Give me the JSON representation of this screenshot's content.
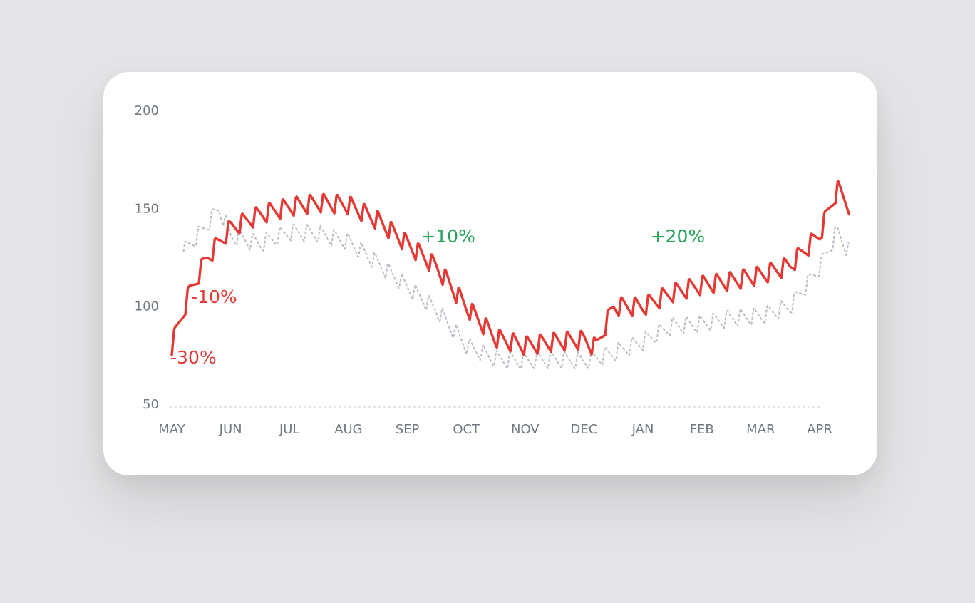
{
  "colors": {
    "primary": "#e53935",
    "secondary": "#b8bcc4",
    "positive": "#27a35a",
    "negative": "#e53935",
    "axis": "#707880"
  },
  "chart_data": {
    "type": "line",
    "title": "",
    "xlabel": "",
    "ylabel": "",
    "ylim": [
      50,
      200
    ],
    "yticks": [
      "200",
      "150",
      "100",
      "50"
    ],
    "xtick_labels": [
      "MAY",
      "JUN",
      "JUL",
      "AUG",
      "SEP",
      "OCT",
      "NOV",
      "DEC",
      "JAN",
      "FEB",
      "MAR",
      "APR"
    ],
    "grid": false,
    "baseline_dashed": true,
    "series": [
      {
        "style": "solid-red",
        "description_points": [
          [
            0.0,
            80
          ],
          [
            0.3,
            107
          ],
          [
            0.6,
            125
          ],
          [
            1.0,
            140
          ],
          [
            1.5,
            147
          ],
          [
            2.0,
            151
          ],
          [
            2.5,
            153
          ],
          [
            3.0,
            152
          ],
          [
            3.5,
            144
          ],
          [
            4.0,
            132
          ],
          [
            4.5,
            120
          ],
          [
            5.0,
            100
          ],
          [
            5.5,
            84
          ],
          [
            6.0,
            80
          ],
          [
            6.5,
            82
          ],
          [
            7.0,
            83
          ],
          [
            7.2,
            79
          ],
          [
            7.5,
            100
          ],
          [
            8.0,
            100
          ],
          [
            8.5,
            107
          ],
          [
            9.0,
            111
          ],
          [
            9.5,
            113
          ],
          [
            10.0,
            116
          ],
          [
            10.5,
            121
          ],
          [
            11.0,
            137
          ],
          [
            11.3,
            160
          ],
          [
            11.5,
            152
          ]
        ]
      },
      {
        "style": "dashed-gray",
        "description_points": [
          [
            0.2,
            128
          ],
          [
            0.5,
            138
          ],
          [
            0.8,
            150
          ],
          [
            1.0,
            136
          ],
          [
            1.5,
            132
          ],
          [
            2.0,
            138
          ],
          [
            2.5,
            137
          ],
          [
            3.0,
            133
          ],
          [
            3.5,
            122
          ],
          [
            4.0,
            110
          ],
          [
            4.5,
            98
          ],
          [
            5.0,
            80
          ],
          [
            5.5,
            73
          ],
          [
            6.0,
            72
          ],
          [
            6.5,
            73
          ],
          [
            7.0,
            72
          ],
          [
            7.5,
            76
          ],
          [
            8.0,
            82
          ],
          [
            8.5,
            90
          ],
          [
            9.0,
            91
          ],
          [
            9.5,
            94
          ],
          [
            10.0,
            95
          ],
          [
            10.5,
            100
          ],
          [
            11.0,
            120
          ],
          [
            11.3,
            138
          ],
          [
            11.5,
            128
          ]
        ]
      }
    ],
    "annotations": [
      {
        "text": "-30%",
        "type": "negative",
        "x": 0.05,
        "y": 74
      },
      {
        "text": "-10%",
        "type": "negative",
        "x": 0.4,
        "y": 105
      },
      {
        "text": "+10%",
        "type": "positive",
        "x": 4.3,
        "y": 136
      },
      {
        "text": "+20%",
        "type": "positive",
        "x": 8.2,
        "y": 136
      }
    ]
  }
}
